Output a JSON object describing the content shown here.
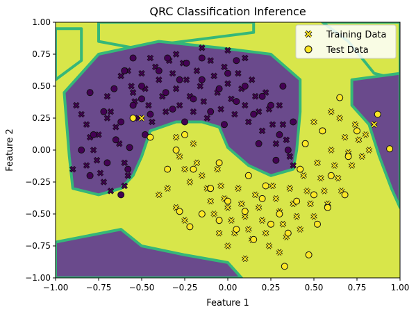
{
  "chart_data": {
    "type": "scatter",
    "title": "QRC Classification Inference",
    "xlabel": "Feature 1",
    "ylabel": "Feature 2",
    "xlim": [
      -1.0,
      1.0
    ],
    "ylim": [
      -1.0,
      1.0
    ],
    "xticks": [
      "−1.00",
      "−0.75",
      "−0.50",
      "−0.25",
      "0.00",
      "0.25",
      "0.50",
      "0.75",
      "1.00"
    ],
    "yticks": [
      "−1.00",
      "−0.75",
      "−0.50",
      "−0.25",
      "0.00",
      "0.25",
      "0.50",
      "0.75",
      "1.00"
    ],
    "grid": false,
    "legend_position": "top-right",
    "colors": {
      "class0": "#440154",
      "class1": "#fde725",
      "region0": "#6a4a8c",
      "region1": "#d8e64a",
      "boundary": "#35b779",
      "edge": "#111111"
    },
    "legend": [
      {
        "label": "Training Data",
        "marker": "x"
      },
      {
        "label": "Test Data",
        "marker": "o"
      }
    ],
    "decision_regions": [
      {
        "class": 1,
        "polygon": [
          [
            -1,
            0.95
          ],
          [
            -0.85,
            0.95
          ],
          [
            -0.85,
            0.7
          ],
          [
            -1,
            0.55
          ]
        ]
      },
      {
        "class": 1,
        "polygon": [
          [
            -0.75,
            1
          ],
          [
            0.15,
            1
          ],
          [
            0.15,
            0.92
          ],
          [
            -0.55,
            0.8
          ],
          [
            -0.75,
            0.85
          ]
        ]
      },
      {
        "class": 1,
        "polygon": [
          [
            0.55,
            1
          ],
          [
            1,
            1
          ],
          [
            1,
            0.55
          ],
          [
            0.85,
            0.6
          ],
          [
            0.7,
            0.85
          ]
        ]
      },
      {
        "class": 0,
        "polygon": [
          [
            -0.95,
            0.45
          ],
          [
            -0.75,
            0.75
          ],
          [
            -0.4,
            0.85
          ],
          [
            -0.05,
            0.8
          ],
          [
            0.25,
            0.75
          ],
          [
            0.42,
            0.55
          ],
          [
            0.42,
            0.3
          ],
          [
            0.4,
            0.0
          ],
          [
            0.38,
            -0.15
          ],
          [
            0.25,
            -0.2
          ],
          [
            0.12,
            -0.12
          ],
          [
            0.0,
            0.02
          ],
          [
            -0.05,
            0.18
          ],
          [
            -0.15,
            0.22
          ],
          [
            -0.3,
            0.22
          ],
          [
            -0.45,
            0.15
          ],
          [
            -0.5,
            -0.05
          ],
          [
            -0.55,
            -0.2
          ],
          [
            -0.62,
            -0.3
          ],
          [
            -0.75,
            -0.35
          ],
          [
            -0.9,
            -0.3
          ],
          [
            -0.92,
            -0.05
          ]
        ]
      },
      {
        "class": 0,
        "polygon": [
          [
            0.72,
            0.55
          ],
          [
            1,
            0.6
          ],
          [
            1,
            -0.45
          ],
          [
            0.95,
            -0.3
          ],
          [
            0.88,
            -0.05
          ],
          [
            0.82,
            0.2
          ],
          [
            0.72,
            0.35
          ]
        ]
      },
      {
        "class": 0,
        "polygon": [
          [
            -1,
            -0.72
          ],
          [
            -0.62,
            -0.62
          ],
          [
            -0.5,
            -0.75
          ],
          [
            -0.25,
            -0.82
          ],
          [
            0.0,
            -0.88
          ],
          [
            0.08,
            -1
          ],
          [
            -1,
            -1
          ]
        ]
      }
    ],
    "series": [
      {
        "name": "Training Data",
        "class": 0,
        "points": [
          [
            -0.88,
            0.35
          ],
          [
            -0.85,
            0.28
          ],
          [
            -0.82,
            0.2
          ],
          [
            -0.8,
            0.1
          ],
          [
            -0.78,
            0.0
          ],
          [
            -0.76,
            -0.08
          ],
          [
            -0.74,
            -0.18
          ],
          [
            -0.72,
            -0.25
          ],
          [
            -0.7,
            0.42
          ],
          [
            -0.68,
            0.3
          ],
          [
            -0.65,
            0.18
          ],
          [
            -0.63,
            0.05
          ],
          [
            -0.6,
            -0.1
          ],
          [
            -0.58,
            -0.2
          ],
          [
            -0.56,
            0.5
          ],
          [
            -0.54,
            0.38
          ],
          [
            -0.52,
            0.25
          ],
          [
            -0.5,
            0.6
          ],
          [
            -0.48,
            0.48
          ],
          [
            -0.46,
            0.35
          ],
          [
            -0.44,
            0.22
          ],
          [
            -0.42,
            0.65
          ],
          [
            -0.4,
            0.55
          ],
          [
            -0.38,
            0.42
          ],
          [
            -0.36,
            0.3
          ],
          [
            -0.34,
            0.7
          ],
          [
            -0.32,
            0.6
          ],
          [
            -0.3,
            0.48
          ],
          [
            -0.28,
            0.35
          ],
          [
            -0.26,
            0.68
          ],
          [
            -0.24,
            0.55
          ],
          [
            -0.22,
            0.42
          ],
          [
            -0.2,
            0.3
          ],
          [
            -0.18,
            0.62
          ],
          [
            -0.16,
            0.5
          ],
          [
            -0.14,
            0.38
          ],
          [
            -0.12,
            0.25
          ],
          [
            -0.1,
            0.7
          ],
          [
            -0.08,
            0.58
          ],
          [
            -0.06,
            0.45
          ],
          [
            -0.04,
            0.32
          ],
          [
            -0.02,
            0.65
          ],
          [
            0.0,
            0.52
          ],
          [
            0.02,
            0.4
          ],
          [
            0.04,
            0.28
          ],
          [
            0.06,
            0.6
          ],
          [
            0.08,
            0.48
          ],
          [
            0.1,
            0.35
          ],
          [
            0.12,
            0.22
          ],
          [
            0.14,
            0.55
          ],
          [
            0.16,
            0.42
          ],
          [
            0.18,
            0.3
          ],
          [
            0.2,
            0.15
          ],
          [
            0.22,
            0.45
          ],
          [
            0.24,
            0.32
          ],
          [
            0.26,
            0.2
          ],
          [
            0.28,
            0.05
          ],
          [
            0.3,
            0.35
          ],
          [
            0.32,
            0.2
          ],
          [
            0.34,
            0.08
          ],
          [
            0.36,
            -0.05
          ],
          [
            0.38,
            -0.12
          ],
          [
            -0.62,
            0.58
          ],
          [
            -0.58,
            0.62
          ],
          [
            -0.55,
            0.45
          ],
          [
            -0.7,
            0.25
          ],
          [
            -0.75,
            0.12
          ],
          [
            -0.82,
            -0.12
          ],
          [
            -0.68,
            -0.32
          ],
          [
            -0.6,
            -0.28
          ],
          [
            -0.9,
            -0.15
          ],
          [
            -0.15,
            0.8
          ],
          [
            0.0,
            0.78
          ],
          [
            0.1,
            0.72
          ],
          [
            -0.3,
            0.75
          ],
          [
            -0.45,
            0.72
          ]
        ]
      },
      {
        "name": "Training Data",
        "class": 1,
        "points": [
          [
            -0.5,
            0.25
          ],
          [
            -0.3,
            0.1
          ],
          [
            -0.28,
            -0.05
          ],
          [
            -0.25,
            -0.15
          ],
          [
            -0.22,
            -0.25
          ],
          [
            -0.2,
            0.05
          ],
          [
            -0.18,
            -0.1
          ],
          [
            -0.15,
            -0.2
          ],
          [
            -0.12,
            -0.3
          ],
          [
            -0.1,
            -0.4
          ],
          [
            -0.08,
            -0.5
          ],
          [
            -0.06,
            -0.15
          ],
          [
            -0.04,
            -0.28
          ],
          [
            -0.02,
            -0.38
          ],
          [
            0.0,
            -0.45
          ],
          [
            0.02,
            -0.55
          ],
          [
            0.04,
            -0.65
          ],
          [
            0.06,
            -0.3
          ],
          [
            0.08,
            -0.42
          ],
          [
            0.1,
            -0.52
          ],
          [
            0.12,
            -0.62
          ],
          [
            0.14,
            -0.7
          ],
          [
            0.16,
            -0.35
          ],
          [
            0.18,
            -0.45
          ],
          [
            0.2,
            -0.55
          ],
          [
            0.22,
            -0.65
          ],
          [
            0.24,
            -0.75
          ],
          [
            0.26,
            -0.28
          ],
          [
            0.28,
            -0.38
          ],
          [
            0.3,
            -0.48
          ],
          [
            0.32,
            -0.58
          ],
          [
            0.34,
            -0.68
          ],
          [
            0.36,
            -0.3
          ],
          [
            0.38,
            -0.42
          ],
          [
            0.4,
            -0.52
          ],
          [
            0.42,
            -0.62
          ],
          [
            0.44,
            -0.2
          ],
          [
            0.46,
            -0.32
          ],
          [
            0.48,
            -0.42
          ],
          [
            0.5,
            -0.52
          ],
          [
            0.52,
            -0.1
          ],
          [
            0.54,
            -0.22
          ],
          [
            0.56,
            -0.32
          ],
          [
            0.58,
            -0.42
          ],
          [
            0.6,
            0.0
          ],
          [
            0.62,
            -0.12
          ],
          [
            0.64,
            -0.22
          ],
          [
            0.66,
            -0.32
          ],
          [
            0.68,
            0.1
          ],
          [
            0.7,
            -0.02
          ],
          [
            0.72,
            -0.12
          ],
          [
            0.74,
            0.2
          ],
          [
            0.76,
            0.08
          ],
          [
            0.78,
            -0.05
          ],
          [
            0.5,
            0.22
          ],
          [
            0.45,
            0.05
          ],
          [
            0.55,
            0.15
          ],
          [
            0.65,
            0.25
          ],
          [
            0.6,
            0.3
          ],
          [
            0.8,
            0.12
          ],
          [
            0.82,
            0.0
          ],
          [
            -0.35,
            -0.3
          ],
          [
            -0.4,
            -0.35
          ],
          [
            -0.3,
            -0.45
          ],
          [
            -0.25,
            -0.55
          ],
          [
            -0.05,
            -0.65
          ],
          [
            0.0,
            -0.75
          ],
          [
            0.3,
            -0.8
          ],
          [
            0.1,
            -0.85
          ],
          [
            0.85,
            0.2
          ]
        ]
      },
      {
        "name": "Test Data",
        "class": 0,
        "points": [
          [
            -0.8,
            0.45
          ],
          [
            -0.78,
            0.12
          ],
          [
            -0.72,
            0.3
          ],
          [
            -0.66,
            0.48
          ],
          [
            -0.62,
            0.22
          ],
          [
            -0.6,
            0.62
          ],
          [
            -0.57,
            0.02
          ],
          [
            -0.55,
            0.35
          ],
          [
            -0.5,
            0.5
          ],
          [
            -0.45,
            0.28
          ],
          [
            -0.4,
            0.62
          ],
          [
            -0.36,
            0.45
          ],
          [
            -0.32,
            0.32
          ],
          [
            -0.28,
            0.55
          ],
          [
            -0.24,
            0.68
          ],
          [
            -0.2,
            0.4
          ],
          [
            -0.15,
            0.55
          ],
          [
            -0.1,
            0.3
          ],
          [
            -0.05,
            0.48
          ],
          [
            0.0,
            0.6
          ],
          [
            0.05,
            0.38
          ],
          [
            0.1,
            0.5
          ],
          [
            0.15,
            0.28
          ],
          [
            0.2,
            0.42
          ],
          [
            0.25,
            0.35
          ],
          [
            0.3,
            0.12
          ],
          [
            -0.65,
            0.08
          ],
          [
            -0.7,
            -0.1
          ],
          [
            -0.58,
            -0.15
          ],
          [
            -0.35,
            0.72
          ],
          [
            -0.15,
            0.72
          ],
          [
            0.05,
            0.7
          ],
          [
            -0.55,
            0.72
          ],
          [
            0.32,
            0.5
          ],
          [
            0.38,
            0.22
          ],
          [
            0.35,
            0.0
          ],
          [
            -0.48,
            0.12
          ],
          [
            -0.25,
            0.22
          ],
          [
            -0.02,
            0.2
          ],
          [
            0.18,
            0.05
          ],
          [
            0.28,
            -0.08
          ],
          [
            -0.85,
            0.0
          ],
          [
            -0.8,
            -0.2
          ],
          [
            -0.62,
            -0.35
          ],
          [
            -0.5,
            0.4
          ]
        ]
      },
      {
        "name": "Test Data",
        "class": 1,
        "points": [
          [
            -0.55,
            0.25
          ],
          [
            -0.45,
            0.1
          ],
          [
            -0.3,
            0.0
          ],
          [
            -0.2,
            -0.15
          ],
          [
            -0.1,
            -0.3
          ],
          [
            0.0,
            -0.4
          ],
          [
            0.1,
            -0.48
          ],
          [
            0.2,
            -0.38
          ],
          [
            0.3,
            -0.5
          ],
          [
            0.4,
            -0.4
          ],
          [
            0.5,
            -0.35
          ],
          [
            0.6,
            -0.2
          ],
          [
            0.7,
            -0.05
          ],
          [
            0.75,
            0.15
          ],
          [
            0.65,
            0.41
          ],
          [
            0.87,
            0.28
          ],
          [
            0.94,
            0.01
          ],
          [
            0.55,
            0.15
          ],
          [
            0.45,
            0.05
          ],
          [
            -0.28,
            -0.48
          ],
          [
            -0.22,
            -0.6
          ],
          [
            -0.15,
            -0.5
          ],
          [
            -0.05,
            -0.55
          ],
          [
            0.05,
            -0.62
          ],
          [
            0.15,
            -0.7
          ],
          [
            0.25,
            -0.58
          ],
          [
            0.35,
            -0.65
          ],
          [
            0.47,
            -0.82
          ],
          [
            0.33,
            -0.91
          ],
          [
            0.58,
            -0.45
          ],
          [
            0.68,
            -0.35
          ],
          [
            0.12,
            -0.2
          ],
          [
            -0.35,
            -0.15
          ],
          [
            0.22,
            -0.28
          ],
          [
            -0.05,
            -0.1
          ],
          [
            0.42,
            -0.15
          ],
          [
            0.52,
            -0.58
          ],
          [
            -0.25,
            0.12
          ]
        ]
      }
    ]
  }
}
